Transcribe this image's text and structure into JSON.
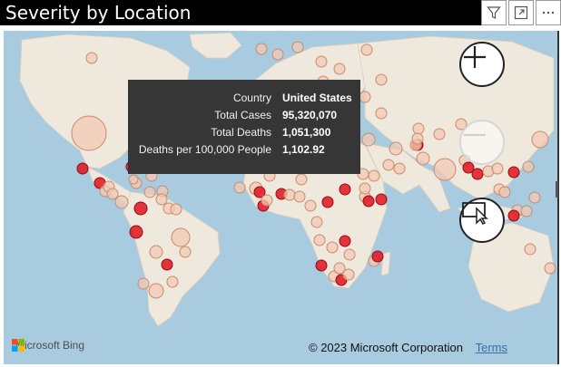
{
  "visual": {
    "title": "Severity by Location"
  },
  "toolbar": {
    "filter_icon": "filter-icon",
    "focus_icon": "focus-mode-icon",
    "more_icon": "more-options-icon"
  },
  "tooltip": {
    "rows": [
      {
        "label": "Country",
        "value": "United States"
      },
      {
        "label": "Total Cases",
        "value": "95,320,070"
      },
      {
        "label": "Total Deaths",
        "value": "1,051,300"
      },
      {
        "label": "Deaths per 100,000 People",
        "value": "1,102.92"
      }
    ]
  },
  "map_controls": {
    "zoom_in": "plus-icon",
    "zoom_out": "minus-icon",
    "select": "rect-select-icon"
  },
  "attribution": {
    "brand": "Microsoft Bing",
    "copyright": "© 2023 Microsoft Corporation",
    "terms": "Terms"
  },
  "colors": {
    "title_bg": "#000000",
    "ocean": "#a8cbe0",
    "land": "#efe8dc",
    "bubble_high": "#e0141e",
    "bubble_low": "#f3c9b4",
    "tooltip_bg": "#363636"
  }
}
